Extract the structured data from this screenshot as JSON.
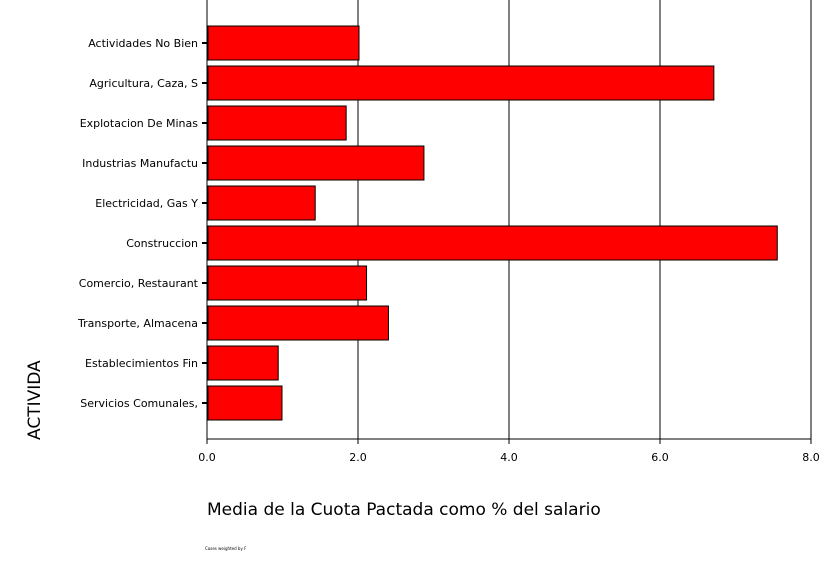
{
  "chart_data": {
    "type": "bar",
    "orientation": "horizontal",
    "categories": [
      "Actividades No Bien",
      "Agricultura, Caza, S",
      "Explotacion De Minas",
      "Industrias Manufactu",
      "Electricidad, Gas Y",
      "Construccion",
      "Comercio, Restaurant",
      "Transporte, Almacena",
      "Establecimientos Fin",
      "Servicios Comunales,"
    ],
    "values": [
      2.0,
      6.7,
      1.83,
      2.86,
      1.42,
      7.54,
      2.1,
      2.39,
      0.93,
      0.98
    ],
    "xlabel": "Media de la Cuota Pactada como % del salario",
    "ylabel": "ACTIVIDA",
    "xlim": [
      0,
      8
    ],
    "xticks": [
      "0.0",
      "2.0",
      "4.0",
      "6.0",
      "8.0"
    ],
    "grid": "vertical",
    "bar_color": "#ff0000",
    "footnote": "Cases weighted by F"
  }
}
